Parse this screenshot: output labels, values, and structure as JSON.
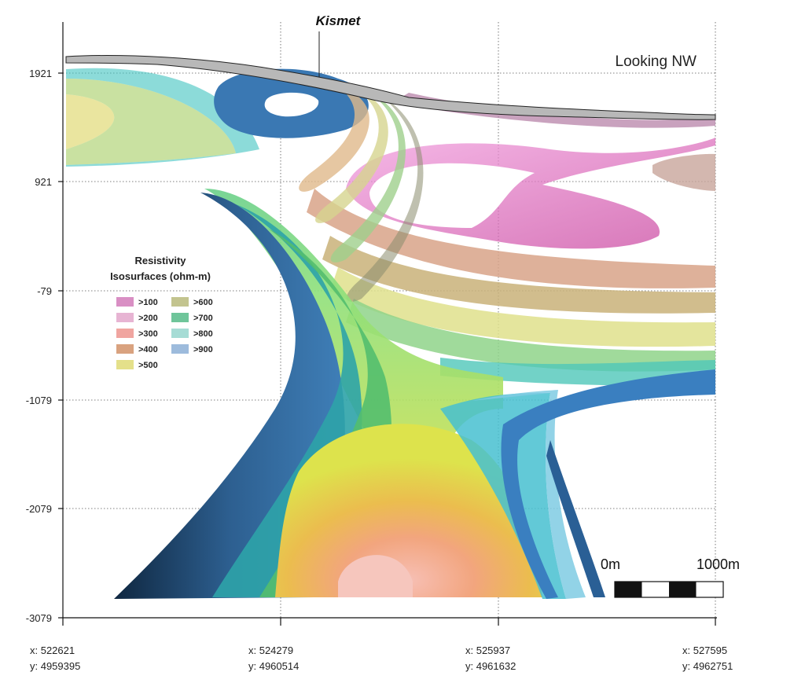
{
  "place_label": "Kismet",
  "view_label": "Looking NW",
  "elevation_ticks": [
    "1921",
    "921",
    "-79",
    "-1079",
    "-2079",
    "-3079"
  ],
  "easting_ticks": [
    {
      "x": "x:  522621",
      "y": "y:  4959395"
    },
    {
      "x": "x:  524279",
      "y": "y:  4960514"
    },
    {
      "x": "x:  525937",
      "y": "y:  4961632"
    },
    {
      "x": "x:  527595",
      "y": "y:  4962751"
    }
  ],
  "legend": {
    "title_line1": "Resistivity",
    "title_line2": "Isosurfaces (ohm-m)",
    "items": [
      {
        "label": ">100",
        "color": "#d98fc4"
      },
      {
        "label": ">200",
        "color": "#e7b4d3"
      },
      {
        "label": ">300",
        "color": "#f0a5a0"
      },
      {
        "label": ">400",
        "color": "#d9a27f"
      },
      {
        "label": ">500",
        "color": "#e4e08a"
      },
      {
        "label": ">600",
        "color": "#c3c48f"
      },
      {
        "label": ">700",
        "color": "#6fc59a"
      },
      {
        "label": ">800",
        "color": "#a6dcd5"
      },
      {
        "label": ">900",
        "color": "#9dbbdc"
      }
    ]
  },
  "scale_bar": {
    "start_label": "0m",
    "end_label": "1000m"
  }
}
